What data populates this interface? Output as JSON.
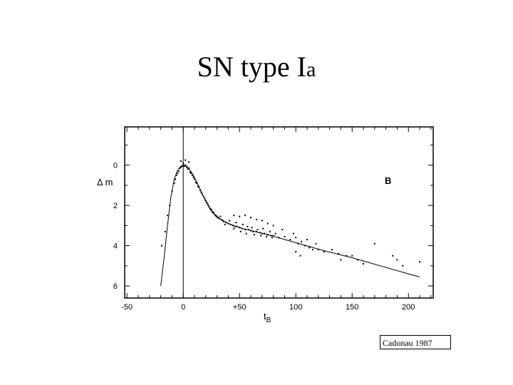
{
  "slide": {
    "title_main": "SN type I",
    "title_sub": "a",
    "credit": "Cadonau 1987"
  },
  "chart_data": {
    "type": "scatter",
    "title": "SN type Ia",
    "xlabel_main": "t",
    "xlabel_sub": "B",
    "ylabel": "Δ m",
    "band_label": "B",
    "xlim": [
      -52,
      222
    ],
    "ylim": [
      6.6,
      -1.9
    ],
    "y_inverted": true,
    "grid": false,
    "x_ticks": [
      -50,
      0,
      50,
      100,
      150,
      200
    ],
    "x_tick_labels": [
      "-50",
      "0",
      "+50",
      "100",
      "150",
      "200"
    ],
    "y_ticks": [
      0,
      2,
      4,
      6
    ],
    "y_tick_labels": [
      "0",
      "2",
      "4",
      "6"
    ],
    "max_light_x": 0,
    "template_curve": [
      [
        -20,
        6.0
      ],
      [
        -17,
        4.6
      ],
      [
        -14,
        3.0
      ],
      [
        -11,
        1.6
      ],
      [
        -8,
        0.7
      ],
      [
        -5,
        0.25
      ],
      [
        -2,
        0.05
      ],
      [
        0,
        0.0
      ],
      [
        3,
        0.05
      ],
      [
        6,
        0.25
      ],
      [
        10,
        0.6
      ],
      [
        15,
        1.2
      ],
      [
        20,
        1.8
      ],
      [
        25,
        2.3
      ],
      [
        30,
        2.6
      ],
      [
        40,
        2.9
      ],
      [
        50,
        3.1
      ],
      [
        60,
        3.25
      ],
      [
        75,
        3.45
      ],
      [
        100,
        3.85
      ],
      [
        125,
        4.25
      ],
      [
        150,
        4.6
      ],
      [
        175,
        5.0
      ],
      [
        200,
        5.4
      ],
      [
        210,
        5.55
      ]
    ],
    "observations": [
      [
        -19,
        4.0
      ],
      [
        -16,
        3.3
      ],
      [
        -14,
        2.5
      ],
      [
        -12,
        2.0
      ],
      [
        -10,
        1.3
      ],
      [
        -8,
        0.9
      ],
      [
        -7,
        0.7
      ],
      [
        -5,
        0.4
      ],
      [
        -4,
        0.3
      ],
      [
        -3,
        0.15
      ],
      [
        -2,
        0.1
      ],
      [
        -1,
        0.05
      ],
      [
        0,
        0.0
      ],
      [
        0,
        -0.1
      ],
      [
        1,
        0.05
      ],
      [
        2,
        0.0
      ],
      [
        3,
        0.1
      ],
      [
        4,
        0.2
      ],
      [
        5,
        0.15
      ],
      [
        6,
        0.35
      ],
      [
        7,
        0.4
      ],
      [
        8,
        0.5
      ],
      [
        9,
        0.6
      ],
      [
        10,
        0.7
      ],
      [
        11,
        0.85
      ],
      [
        12,
        0.9
      ],
      [
        13,
        1.05
      ],
      [
        14,
        1.1
      ],
      [
        15,
        1.25
      ],
      [
        16,
        1.35
      ],
      [
        17,
        1.45
      ],
      [
        18,
        1.55
      ],
      [
        19,
        1.65
      ],
      [
        20,
        1.75
      ],
      [
        21,
        1.85
      ],
      [
        22,
        1.95
      ],
      [
        23,
        2.05
      ],
      [
        24,
        2.15
      ],
      [
        25,
        2.2
      ],
      [
        26,
        2.3
      ],
      [
        27,
        2.35
      ],
      [
        28,
        2.45
      ],
      [
        29,
        2.5
      ],
      [
        30,
        2.55
      ],
      [
        31,
        2.6
      ],
      [
        32,
        2.65
      ],
      [
        34,
        2.7
      ],
      [
        35,
        2.75
      ],
      [
        36,
        2.8
      ],
      [
        38,
        2.85
      ],
      [
        40,
        2.9
      ],
      [
        42,
        2.95
      ],
      [
        44,
        3.0
      ],
      [
        46,
        3.05
      ],
      [
        48,
        3.05
      ],
      [
        50,
        3.1
      ],
      [
        52,
        3.15
      ],
      [
        55,
        3.2
      ],
      [
        58,
        3.2
      ],
      [
        60,
        3.25
      ],
      [
        62,
        3.3
      ],
      [
        65,
        3.3
      ],
      [
        68,
        3.35
      ],
      [
        70,
        3.4
      ],
      [
        72,
        3.4
      ],
      [
        75,
        3.45
      ],
      [
        78,
        3.5
      ],
      [
        80,
        3.5
      ],
      [
        85,
        3.6
      ],
      [
        33,
        2.55
      ],
      [
        37,
        2.95
      ],
      [
        41,
        2.75
      ],
      [
        45,
        3.15
      ],
      [
        47,
        2.85
      ],
      [
        51,
        3.3
      ],
      [
        53,
        2.95
      ],
      [
        56,
        3.4
      ],
      [
        57,
        3.05
      ],
      [
        61,
        3.1
      ],
      [
        63,
        3.45
      ],
      [
        66,
        3.2
      ],
      [
        69,
        3.5
      ],
      [
        71,
        3.15
      ],
      [
        74,
        3.55
      ],
      [
        77,
        3.3
      ],
      [
        79,
        3.6
      ],
      [
        82,
        3.4
      ],
      [
        45,
        2.5
      ],
      [
        50,
        2.55
      ],
      [
        55,
        2.5
      ],
      [
        60,
        2.6
      ],
      [
        65,
        2.7
      ],
      [
        70,
        2.75
      ],
      [
        75,
        2.9
      ],
      [
        80,
        3.0
      ],
      [
        88,
        3.2
      ],
      [
        90,
        3.55
      ],
      [
        95,
        3.7
      ],
      [
        98,
        3.4
      ],
      [
        100,
        3.6
      ],
      [
        102,
        3.9
      ],
      [
        105,
        3.8
      ],
      [
        100,
        4.3
      ],
      [
        104,
        4.5
      ],
      [
        108,
        4.0
      ],
      [
        110,
        3.7
      ],
      [
        112,
        4.1
      ],
      [
        115,
        4.2
      ],
      [
        118,
        3.9
      ],
      [
        120,
        4.2
      ],
      [
        125,
        4.3
      ],
      [
        132,
        4.2
      ],
      [
        138,
        4.4
      ],
      [
        140,
        4.7
      ],
      [
        145,
        4.5
      ],
      [
        150,
        4.5
      ],
      [
        155,
        4.7
      ],
      [
        160,
        4.9
      ],
      [
        170,
        3.9
      ],
      [
        186,
        4.5
      ],
      [
        190,
        4.7
      ],
      [
        195,
        5.0
      ],
      [
        210,
        4.8
      ],
      [
        -2,
        -0.2
      ],
      [
        2,
        -0.25
      ],
      [
        5,
        -0.15
      ],
      [
        -6,
        0.5
      ]
    ]
  }
}
